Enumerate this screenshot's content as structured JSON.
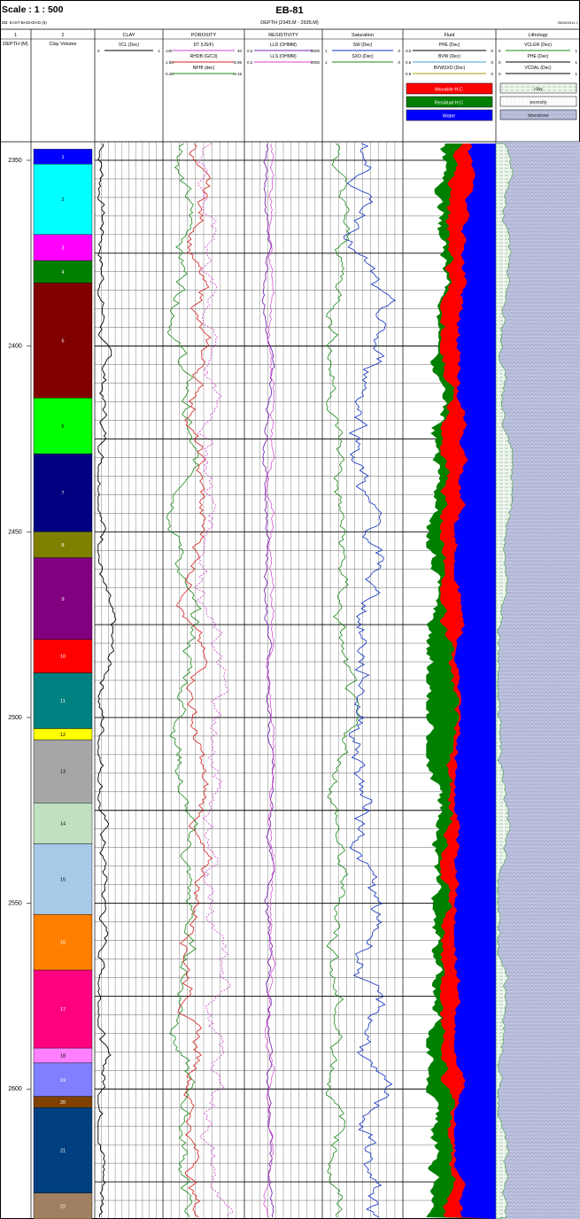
{
  "header": {
    "scale": "Scale : 1 : 500",
    "db_label": "DB: EAST-BAGHDAD (5)",
    "well_name": "EB-81",
    "depth_range": "DEPTH (2345.M - 2635.M)",
    "date": "05/09/2014 1"
  },
  "tracks": [
    {
      "number": "1",
      "title": "DEPTH (M)"
    },
    {
      "number": "2",
      "title": "Clay Volume"
    },
    {
      "number": "",
      "title": "CLAY"
    },
    {
      "number": "",
      "title": "POROSITY"
    },
    {
      "number": "",
      "title": "RESISTIVITY"
    },
    {
      "number": "",
      "title": "Saturation"
    },
    {
      "number": "",
      "title": "Fluid"
    },
    {
      "number": "",
      "title": "Lithology"
    }
  ],
  "curve_headers": {
    "clay": [
      {
        "name": "VCL (Dec)",
        "left": "0",
        "right": "1",
        "color": "#000000"
      }
    ],
    "porosity": [
      {
        "name": "DT (US/F)",
        "left": "140",
        "right": "40",
        "color": "#cc44cc"
      },
      {
        "name": "RHOB (G/C3)",
        "left": "1.95",
        "right": "2.95",
        "color": "#d42020"
      },
      {
        "name": "NPHI (dec)",
        "left": "0.45",
        "right": "-0.15",
        "color": "#1a8a1a"
      }
    ],
    "resistivity": [
      {
        "name": "LLD (OHMM)",
        "left": "0.2",
        "right": "2000",
        "color": "#7a2ab0"
      },
      {
        "name": "LLS (OHMM)",
        "left": "0.2",
        "right": "2000",
        "color": "#d040d0"
      }
    ],
    "saturation": [
      {
        "name": "SW (Dec)",
        "left": "1",
        "right": "0",
        "color": "#1030c0"
      },
      {
        "name": "SXO (Dec)",
        "left": "1",
        "right": "0",
        "color": "#1a8a1a"
      }
    ],
    "fluid": [
      {
        "name": "PHE (Dec)",
        "left": "0.5",
        "right": "0",
        "color": "#000000"
      },
      {
        "name": "BVW (Dec)",
        "left": "0.5",
        "right": "0",
        "color": "#40a0d0"
      },
      {
        "name": "BVWSXO (Dec)",
        "left": "0.5",
        "right": "0",
        "color": "#a0a000"
      }
    ],
    "lithology": [
      {
        "name": "VCLGR (Dec)",
        "left": "0",
        "right": "1",
        "color": "#1a8a1a"
      },
      {
        "name": "PHE (Dec)",
        "left": "0",
        "right": "1",
        "color": "#000000"
      },
      {
        "name": "VCDAL (Dec)",
        "left": "0",
        "right": "1",
        "color": "#000000"
      }
    ]
  },
  "fluid_legend": [
    {
      "label": "Movable H.C",
      "color": "#ff0000"
    },
    {
      "label": "Residual H.C",
      "color": "#008000"
    },
    {
      "label": "Water",
      "color": "#0000ff"
    }
  ],
  "lithology_legend": [
    {
      "label": "clay",
      "pattern": "clay"
    },
    {
      "label": "porosity",
      "pattern": "porosity"
    },
    {
      "label": "limestone",
      "pattern": "limestone"
    }
  ],
  "chart_data": {
    "type": "well-log",
    "depth_unit": "M",
    "depth_range": [
      2345,
      2635
    ],
    "depth_ticks": [
      2350,
      2400,
      2450,
      2500,
      2550,
      2600
    ],
    "zones": [
      {
        "label": "1",
        "top": 2347,
        "base": 2351,
        "color": "#0000ff"
      },
      {
        "label": "2",
        "top": 2351,
        "base": 2370,
        "color": "#00ffff"
      },
      {
        "label": "3",
        "top": 2370,
        "base": 2377,
        "color": "#ff00ff"
      },
      {
        "label": "4",
        "top": 2377,
        "base": 2383,
        "color": "#008000"
      },
      {
        "label": "5",
        "top": 2383,
        "base": 2414,
        "color": "#800000"
      },
      {
        "label": "6",
        "top": 2414,
        "base": 2429,
        "color": "#00ff00"
      },
      {
        "label": "7",
        "top": 2429,
        "base": 2450,
        "color": "#000080"
      },
      {
        "label": "8",
        "top": 2450,
        "base": 2457,
        "color": "#808000"
      },
      {
        "label": "9",
        "top": 2457,
        "base": 2479,
        "color": "#800080"
      },
      {
        "label": "10",
        "top": 2479,
        "base": 2488,
        "color": "#ff0000"
      },
      {
        "label": "11",
        "top": 2488,
        "base": 2503,
        "color": "#008080"
      },
      {
        "label": "12",
        "top": 2503,
        "base": 2506,
        "color": "#ffff00"
      },
      {
        "label": "13",
        "top": 2506,
        "base": 2523,
        "color": "#a6a6a6"
      },
      {
        "label": "14",
        "top": 2523,
        "base": 2534,
        "color": "#c0e0c0"
      },
      {
        "label": "15",
        "top": 2534,
        "base": 2553,
        "color": "#a6cae8"
      },
      {
        "label": "16",
        "top": 2553,
        "base": 2568,
        "color": "#ff8000"
      },
      {
        "label": "17",
        "top": 2568,
        "base": 2589,
        "color": "#ff0080"
      },
      {
        "label": "18",
        "top": 2589,
        "base": 2593,
        "color": "#ff80ff"
      },
      {
        "label": "19",
        "top": 2593,
        "base": 2602,
        "color": "#8080ff"
      },
      {
        "label": "20",
        "top": 2602,
        "base": 2605,
        "color": "#804000"
      },
      {
        "label": "21",
        "top": 2605,
        "base": 2628,
        "color": "#004080"
      },
      {
        "label": "22",
        "top": 2628,
        "base": 2635,
        "color": "#a08060"
      }
    ]
  }
}
